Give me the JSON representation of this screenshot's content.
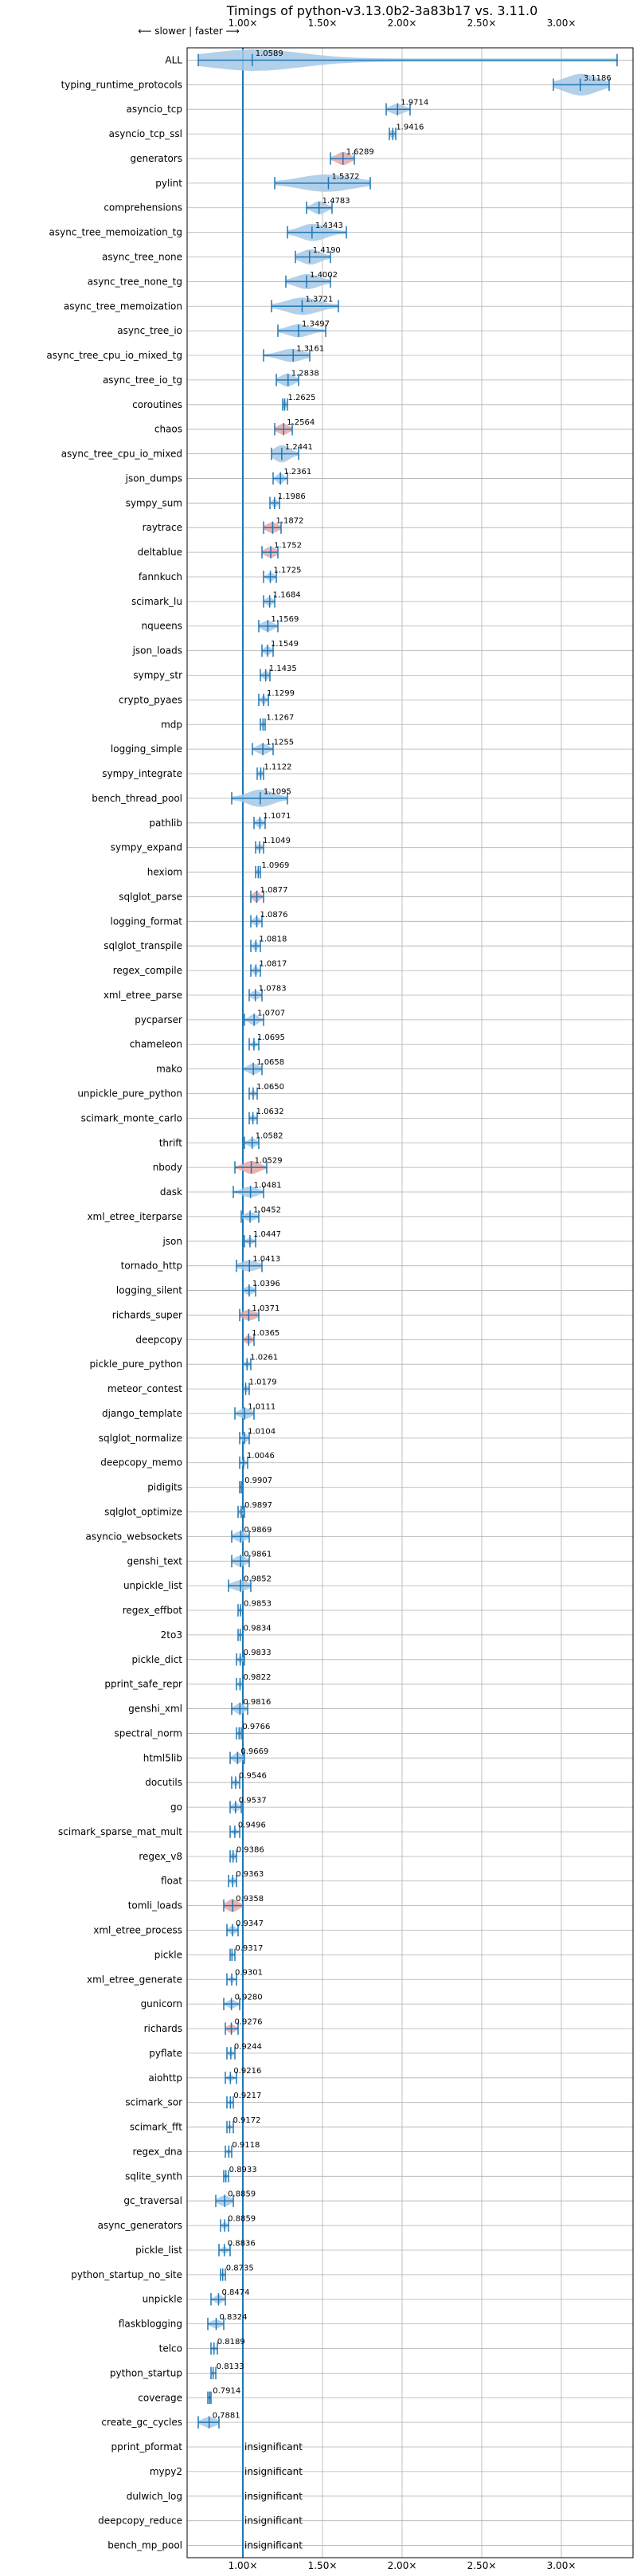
{
  "chart_data": {
    "type": "violin",
    "title": "Timings of python-v3.13.0b2-3a83b17 vs. 3.11.0",
    "direction_label": "⟵ slower | faster ⟶",
    "x_ticks": [
      {
        "value": 1.0,
        "label": "1.00×"
      },
      {
        "value": 1.5,
        "label": "1.50×"
      },
      {
        "value": 2.0,
        "label": "2.00×"
      },
      {
        "value": 2.5,
        "label": "2.50×"
      },
      {
        "value": 3.0,
        "label": "3.00×"
      }
    ],
    "xlim": [
      0.65,
      3.45
    ],
    "reference_line": 1.0,
    "grid": true,
    "colors": {
      "violin": "#1f77b4",
      "violin_fill": "#a6c8e6",
      "significant_low": "#d62728",
      "axis": "#000000",
      "grid": "#b0b0b0"
    },
    "insignificant_label": "insignificant",
    "benchmarks": [
      {
        "name": "ALL",
        "value": 1.0589,
        "lo": 0.72,
        "hi": 3.35,
        "q1": 0.85,
        "q3": 1.3,
        "width": 1.0
      },
      {
        "name": "typing_runtime_protocols",
        "value": 3.1186,
        "lo": 2.95,
        "hi": 3.3,
        "q1": 3.05,
        "q3": 3.2,
        "width": 1.0
      },
      {
        "name": "asyncio_tcp",
        "value": 1.9714,
        "lo": 1.9,
        "hi": 2.05,
        "q1": 1.94,
        "q3": 2.0,
        "width": 0.5
      },
      {
        "name": "asyncio_tcp_ssl",
        "value": 1.9416,
        "lo": 1.92,
        "hi": 1.96,
        "q1": 1.93,
        "q3": 1.95,
        "width": 0.4
      },
      {
        "name": "generators",
        "value": 1.6289,
        "lo": 1.55,
        "hi": 1.7,
        "q1": 1.6,
        "q3": 1.66,
        "width": 0.6,
        "red": true
      },
      {
        "name": "pylint",
        "value": 1.5372,
        "lo": 1.2,
        "hi": 1.8,
        "q1": 1.4,
        "q3": 1.65,
        "width": 0.8
      },
      {
        "name": "comprehensions",
        "value": 1.4783,
        "lo": 1.4,
        "hi": 1.56,
        "q1": 1.45,
        "q3": 1.51,
        "width": 0.6
      },
      {
        "name": "async_tree_memoization_tg",
        "value": 1.4343,
        "lo": 1.28,
        "hi": 1.65,
        "q1": 1.38,
        "q3": 1.5,
        "width": 0.8
      },
      {
        "name": "async_tree_none",
        "value": 1.419,
        "lo": 1.33,
        "hi": 1.55,
        "q1": 1.38,
        "q3": 1.47,
        "width": 0.7
      },
      {
        "name": "async_tree_none_tg",
        "value": 1.4002,
        "lo": 1.27,
        "hi": 1.55,
        "q1": 1.35,
        "q3": 1.46,
        "width": 0.7
      },
      {
        "name": "async_tree_memoization",
        "value": 1.3721,
        "lo": 1.18,
        "hi": 1.6,
        "q1": 1.3,
        "q3": 1.45,
        "width": 0.8
      },
      {
        "name": "async_tree_io",
        "value": 1.3497,
        "lo": 1.22,
        "hi": 1.52,
        "q1": 1.3,
        "q3": 1.4,
        "width": 0.6
      },
      {
        "name": "async_tree_cpu_io_mixed_tg",
        "value": 1.3161,
        "lo": 1.13,
        "hi": 1.42,
        "q1": 1.25,
        "q3": 1.36,
        "width": 0.6
      },
      {
        "name": "async_tree_io_tg",
        "value": 1.2838,
        "lo": 1.21,
        "hi": 1.35,
        "q1": 1.25,
        "q3": 1.31,
        "width": 0.6
      },
      {
        "name": "coroutines",
        "value": 1.2625,
        "lo": 1.25,
        "hi": 1.28,
        "q1": 1.255,
        "q3": 1.27,
        "width": 0.4
      },
      {
        "name": "chaos",
        "value": 1.2564,
        "lo": 1.2,
        "hi": 1.31,
        "q1": 1.23,
        "q3": 1.28,
        "width": 0.5,
        "red": true
      },
      {
        "name": "async_tree_cpu_io_mixed",
        "value": 1.2441,
        "lo": 1.18,
        "hi": 1.35,
        "q1": 1.21,
        "q3": 1.28,
        "width": 0.8
      },
      {
        "name": "json_dumps",
        "value": 1.2361,
        "lo": 1.19,
        "hi": 1.28,
        "q1": 1.22,
        "q3": 1.25,
        "width": 0.5
      },
      {
        "name": "sympy_sum",
        "value": 1.1986,
        "lo": 1.17,
        "hi": 1.23,
        "q1": 1.19,
        "q3": 1.21,
        "width": 0.4
      },
      {
        "name": "raytrace",
        "value": 1.1872,
        "lo": 1.13,
        "hi": 1.24,
        "q1": 1.16,
        "q3": 1.21,
        "width": 0.5,
        "red": true
      },
      {
        "name": "deltablue",
        "value": 1.1752,
        "lo": 1.12,
        "hi": 1.22,
        "q1": 1.15,
        "q3": 1.2,
        "width": 0.5,
        "red": true
      },
      {
        "name": "fannkuch",
        "value": 1.1725,
        "lo": 1.13,
        "hi": 1.21,
        "q1": 1.16,
        "q3": 1.19,
        "width": 0.4
      },
      {
        "name": "scimark_lu",
        "value": 1.1684,
        "lo": 1.13,
        "hi": 1.2,
        "q1": 1.15,
        "q3": 1.18,
        "width": 0.4
      },
      {
        "name": "nqueens",
        "value": 1.1569,
        "lo": 1.1,
        "hi": 1.22,
        "q1": 1.13,
        "q3": 1.18,
        "width": 0.5
      },
      {
        "name": "json_loads",
        "value": 1.1549,
        "lo": 1.12,
        "hi": 1.19,
        "q1": 1.14,
        "q3": 1.17,
        "width": 0.4
      },
      {
        "name": "sympy_str",
        "value": 1.1435,
        "lo": 1.11,
        "hi": 1.17,
        "q1": 1.13,
        "q3": 1.16,
        "width": 0.4
      },
      {
        "name": "crypto_pyaes",
        "value": 1.1299,
        "lo": 1.1,
        "hi": 1.16,
        "q1": 1.12,
        "q3": 1.14,
        "width": 0.4
      },
      {
        "name": "mdp",
        "value": 1.1267,
        "lo": 1.11,
        "hi": 1.14,
        "q1": 1.12,
        "q3": 1.13,
        "width": 0.3
      },
      {
        "name": "logging_simple",
        "value": 1.1255,
        "lo": 1.06,
        "hi": 1.19,
        "q1": 1.1,
        "q3": 1.15,
        "width": 0.5
      },
      {
        "name": "sympy_integrate",
        "value": 1.1122,
        "lo": 1.09,
        "hi": 1.13,
        "q1": 1.1,
        "q3": 1.12,
        "width": 0.3
      },
      {
        "name": "bench_thread_pool",
        "value": 1.1095,
        "lo": 0.93,
        "hi": 1.28,
        "q1": 1.05,
        "q3": 1.17,
        "width": 0.8
      },
      {
        "name": "pathlib",
        "value": 1.1071,
        "lo": 1.07,
        "hi": 1.14,
        "q1": 1.09,
        "q3": 1.12,
        "width": 0.4
      },
      {
        "name": "sympy_expand",
        "value": 1.1049,
        "lo": 1.08,
        "hi": 1.13,
        "q1": 1.09,
        "q3": 1.12,
        "width": 0.3
      },
      {
        "name": "hexiom",
        "value": 1.0969,
        "lo": 1.08,
        "hi": 1.11,
        "q1": 1.09,
        "q3": 1.1,
        "width": 0.3
      },
      {
        "name": "sqlglot_parse",
        "value": 1.0877,
        "lo": 1.05,
        "hi": 1.13,
        "q1": 1.07,
        "q3": 1.1,
        "width": 0.5,
        "red": true
      },
      {
        "name": "logging_format",
        "value": 1.0876,
        "lo": 1.05,
        "hi": 1.12,
        "q1": 1.07,
        "q3": 1.1,
        "width": 0.4
      },
      {
        "name": "sqlglot_transpile",
        "value": 1.0818,
        "lo": 1.05,
        "hi": 1.11,
        "q1": 1.07,
        "q3": 1.09,
        "width": 0.4
      },
      {
        "name": "regex_compile",
        "value": 1.0817,
        "lo": 1.05,
        "hi": 1.11,
        "q1": 1.07,
        "q3": 1.09,
        "width": 0.4
      },
      {
        "name": "xml_etree_parse",
        "value": 1.0783,
        "lo": 1.04,
        "hi": 1.12,
        "q1": 1.06,
        "q3": 1.1,
        "width": 0.4
      },
      {
        "name": "pycparser",
        "value": 1.0707,
        "lo": 1.01,
        "hi": 1.13,
        "q1": 1.05,
        "q3": 1.09,
        "width": 0.5
      },
      {
        "name": "chameleon",
        "value": 1.0695,
        "lo": 1.04,
        "hi": 1.1,
        "q1": 1.06,
        "q3": 1.08,
        "width": 0.3
      },
      {
        "name": "mako",
        "value": 1.0658,
        "lo": 1.0,
        "hi": 1.12,
        "q1": 1.04,
        "q3": 1.09,
        "width": 0.5
      },
      {
        "name": "unpickle_pure_python",
        "value": 1.065,
        "lo": 1.04,
        "hi": 1.09,
        "q1": 1.055,
        "q3": 1.075,
        "width": 0.3
      },
      {
        "name": "scimark_monte_carlo",
        "value": 1.0632,
        "lo": 1.04,
        "hi": 1.09,
        "q1": 1.05,
        "q3": 1.075,
        "width": 0.3
      },
      {
        "name": "thrift",
        "value": 1.0582,
        "lo": 1.01,
        "hi": 1.1,
        "q1": 1.04,
        "q3": 1.08,
        "width": 0.4
      },
      {
        "name": "nbody",
        "value": 1.0529,
        "lo": 0.95,
        "hi": 1.15,
        "q1": 1.02,
        "q3": 1.09,
        "width": 0.6,
        "red": true
      },
      {
        "name": "dask",
        "value": 1.0481,
        "lo": 0.94,
        "hi": 1.13,
        "q1": 1.01,
        "q3": 1.08,
        "width": 0.5
      },
      {
        "name": "xml_etree_iterparse",
        "value": 1.0452,
        "lo": 0.99,
        "hi": 1.1,
        "q1": 1.02,
        "q3": 1.07,
        "width": 0.4
      },
      {
        "name": "json",
        "value": 1.0447,
        "lo": 1.01,
        "hi": 1.08,
        "q1": 1.03,
        "q3": 1.06,
        "width": 0.3
      },
      {
        "name": "tornado_http",
        "value": 1.0413,
        "lo": 0.96,
        "hi": 1.12,
        "q1": 1.0,
        "q3": 1.08,
        "width": 0.5
      },
      {
        "name": "logging_silent",
        "value": 1.0396,
        "lo": 1.0,
        "hi": 1.08,
        "q1": 1.02,
        "q3": 1.06,
        "width": 0.4
      },
      {
        "name": "richards_super",
        "value": 1.0371,
        "lo": 0.98,
        "hi": 1.1,
        "q1": 1.01,
        "q3": 1.07,
        "width": 0.5,
        "red": true
      },
      {
        "name": "deepcopy",
        "value": 1.0365,
        "lo": 1.0,
        "hi": 1.07,
        "q1": 1.02,
        "q3": 1.05,
        "width": 0.4,
        "red": true
      },
      {
        "name": "pickle_pure_python",
        "value": 1.0261,
        "lo": 1.0,
        "hi": 1.05,
        "q1": 1.015,
        "q3": 1.04,
        "width": 0.3
      },
      {
        "name": "meteor_contest",
        "value": 1.0179,
        "lo": 1.0,
        "hi": 1.04,
        "q1": 1.01,
        "q3": 1.03,
        "width": 0.3
      },
      {
        "name": "django_template",
        "value": 1.0111,
        "lo": 0.95,
        "hi": 1.07,
        "q1": 0.99,
        "q3": 1.04,
        "width": 0.5
      },
      {
        "name": "sqlglot_normalize",
        "value": 1.0104,
        "lo": 0.98,
        "hi": 1.04,
        "q1": 1.0,
        "q3": 1.025,
        "width": 0.4
      },
      {
        "name": "deepcopy_memo",
        "value": 1.0046,
        "lo": 0.98,
        "hi": 1.03,
        "q1": 0.995,
        "q3": 1.015,
        "width": 0.3
      },
      {
        "name": "pidigits",
        "value": 0.9907,
        "lo": 0.98,
        "hi": 1.0,
        "q1": 0.985,
        "q3": 0.995,
        "width": 0.2
      },
      {
        "name": "sqlglot_optimize",
        "value": 0.9897,
        "lo": 0.97,
        "hi": 1.01,
        "q1": 0.98,
        "q3": 1.0,
        "width": 0.3
      },
      {
        "name": "asyncio_websockets",
        "value": 0.9869,
        "lo": 0.93,
        "hi": 1.04,
        "q1": 0.96,
        "q3": 1.01,
        "width": 0.5
      },
      {
        "name": "genshi_text",
        "value": 0.9861,
        "lo": 0.93,
        "hi": 1.04,
        "q1": 0.96,
        "q3": 1.01,
        "width": 0.5
      },
      {
        "name": "unpickle_list",
        "value": 0.9852,
        "lo": 0.91,
        "hi": 1.05,
        "q1": 0.95,
        "q3": 1.02,
        "width": 0.5
      },
      {
        "name": "regex_effbot",
        "value": 0.9853,
        "lo": 0.97,
        "hi": 1.0,
        "q1": 0.98,
        "q3": 0.99,
        "width": 0.3
      },
      {
        "name": "2to3",
        "value": 0.9834,
        "lo": 0.97,
        "hi": 1.0,
        "q1": 0.978,
        "q3": 0.99,
        "width": 0.2
      },
      {
        "name": "pickle_dict",
        "value": 0.9833,
        "lo": 0.96,
        "hi": 1.01,
        "q1": 0.975,
        "q3": 0.995,
        "width": 0.3
      },
      {
        "name": "pprint_safe_repr",
        "value": 0.9822,
        "lo": 0.96,
        "hi": 1.0,
        "q1": 0.975,
        "q3": 0.99,
        "width": 0.3
      },
      {
        "name": "genshi_xml",
        "value": 0.9816,
        "lo": 0.93,
        "hi": 1.03,
        "q1": 0.96,
        "q3": 1.0,
        "width": 0.5
      },
      {
        "name": "spectral_norm",
        "value": 0.9766,
        "lo": 0.96,
        "hi": 0.99,
        "q1": 0.97,
        "q3": 0.985,
        "width": 0.2
      },
      {
        "name": "html5lib",
        "value": 0.9669,
        "lo": 0.92,
        "hi": 1.01,
        "q1": 0.95,
        "q3": 0.985,
        "width": 0.5
      },
      {
        "name": "docutils",
        "value": 0.9546,
        "lo": 0.93,
        "hi": 0.98,
        "q1": 0.945,
        "q3": 0.965,
        "width": 0.3
      },
      {
        "name": "go",
        "value": 0.9537,
        "lo": 0.92,
        "hi": 0.99,
        "q1": 0.94,
        "q3": 0.97,
        "width": 0.4
      },
      {
        "name": "scimark_sparse_mat_mult",
        "value": 0.9496,
        "lo": 0.92,
        "hi": 0.98,
        "q1": 0.94,
        "q3": 0.96,
        "width": 0.3
      },
      {
        "name": "regex_v8",
        "value": 0.9386,
        "lo": 0.92,
        "hi": 0.96,
        "q1": 0.93,
        "q3": 0.95,
        "width": 0.3
      },
      {
        "name": "float",
        "value": 0.9363,
        "lo": 0.91,
        "hi": 0.96,
        "q1": 0.925,
        "q3": 0.95,
        "width": 0.3
      },
      {
        "name": "tomli_loads",
        "value": 0.9358,
        "lo": 0.88,
        "hi": 1.0,
        "q1": 0.91,
        "q3": 0.96,
        "width": 0.6,
        "red": true
      },
      {
        "name": "xml_etree_process",
        "value": 0.9347,
        "lo": 0.9,
        "hi": 0.97,
        "q1": 0.92,
        "q3": 0.95,
        "width": 0.4
      },
      {
        "name": "pickle",
        "value": 0.9317,
        "lo": 0.92,
        "hi": 0.95,
        "q1": 0.925,
        "q3": 0.94,
        "width": 0.2
      },
      {
        "name": "xml_etree_generate",
        "value": 0.9301,
        "lo": 0.9,
        "hi": 0.96,
        "q1": 0.92,
        "q3": 0.94,
        "width": 0.3
      },
      {
        "name": "gunicorn",
        "value": 0.928,
        "lo": 0.88,
        "hi": 0.98,
        "q1": 0.91,
        "q3": 0.95,
        "width": 0.4
      },
      {
        "name": "richards",
        "value": 0.9276,
        "lo": 0.89,
        "hi": 0.97,
        "q1": 0.91,
        "q3": 0.945,
        "width": 0.4,
        "red": true
      },
      {
        "name": "pyflate",
        "value": 0.9244,
        "lo": 0.9,
        "hi": 0.95,
        "q1": 0.915,
        "q3": 0.935,
        "width": 0.3
      },
      {
        "name": "aiohttp",
        "value": 0.9216,
        "lo": 0.89,
        "hi": 0.96,
        "q1": 0.91,
        "q3": 0.935,
        "width": 0.3
      },
      {
        "name": "scimark_sor",
        "value": 0.9217,
        "lo": 0.9,
        "hi": 0.94,
        "q1": 0.915,
        "q3": 0.93,
        "width": 0.2
      },
      {
        "name": "scimark_fft",
        "value": 0.9172,
        "lo": 0.9,
        "hi": 0.94,
        "q1": 0.91,
        "q3": 0.925,
        "width": 0.2
      },
      {
        "name": "regex_dna",
        "value": 0.9118,
        "lo": 0.89,
        "hi": 0.93,
        "q1": 0.9,
        "q3": 0.92,
        "width": 0.2
      },
      {
        "name": "sqlite_synth",
        "value": 0.8933,
        "lo": 0.88,
        "hi": 0.91,
        "q1": 0.885,
        "q3": 0.9,
        "width": 0.2
      },
      {
        "name": "gc_traversal",
        "value": 0.8859,
        "lo": 0.83,
        "hi": 0.94,
        "q1": 0.86,
        "q3": 0.91,
        "width": 0.5
      },
      {
        "name": "async_generators",
        "value": 0.8859,
        "lo": 0.86,
        "hi": 0.91,
        "q1": 0.875,
        "q3": 0.895,
        "width": 0.3
      },
      {
        "name": "pickle_list",
        "value": 0.8836,
        "lo": 0.85,
        "hi": 0.92,
        "q1": 0.87,
        "q3": 0.9,
        "width": 0.3
      },
      {
        "name": "python_startup_no_site",
        "value": 0.8735,
        "lo": 0.86,
        "hi": 0.89,
        "q1": 0.865,
        "q3": 0.88,
        "width": 0.2
      },
      {
        "name": "unpickle",
        "value": 0.8474,
        "lo": 0.8,
        "hi": 0.89,
        "q1": 0.83,
        "q3": 0.865,
        "width": 0.4
      },
      {
        "name": "flaskblogging",
        "value": 0.8324,
        "lo": 0.78,
        "hi": 0.88,
        "q1": 0.81,
        "q3": 0.855,
        "width": 0.4
      },
      {
        "name": "telco",
        "value": 0.8189,
        "lo": 0.8,
        "hi": 0.84,
        "q1": 0.81,
        "q3": 0.83,
        "width": 0.2
      },
      {
        "name": "python_startup",
        "value": 0.8133,
        "lo": 0.8,
        "hi": 0.83,
        "q1": 0.805,
        "q3": 0.82,
        "width": 0.2
      },
      {
        "name": "coverage",
        "value": 0.7914,
        "lo": 0.78,
        "hi": 0.8,
        "q1": 0.785,
        "q3": 0.797,
        "width": 0.2
      },
      {
        "name": "create_gc_cycles",
        "value": 0.7881,
        "lo": 0.72,
        "hi": 0.85,
        "q1": 0.76,
        "q3": 0.82,
        "width": 0.5
      },
      {
        "name": "pprint_pformat",
        "insignificant": true
      },
      {
        "name": "mypy2",
        "insignificant": true
      },
      {
        "name": "dulwich_log",
        "insignificant": true
      },
      {
        "name": "deepcopy_reduce",
        "insignificant": true
      },
      {
        "name": "bench_mp_pool",
        "insignificant": true
      }
    ]
  }
}
